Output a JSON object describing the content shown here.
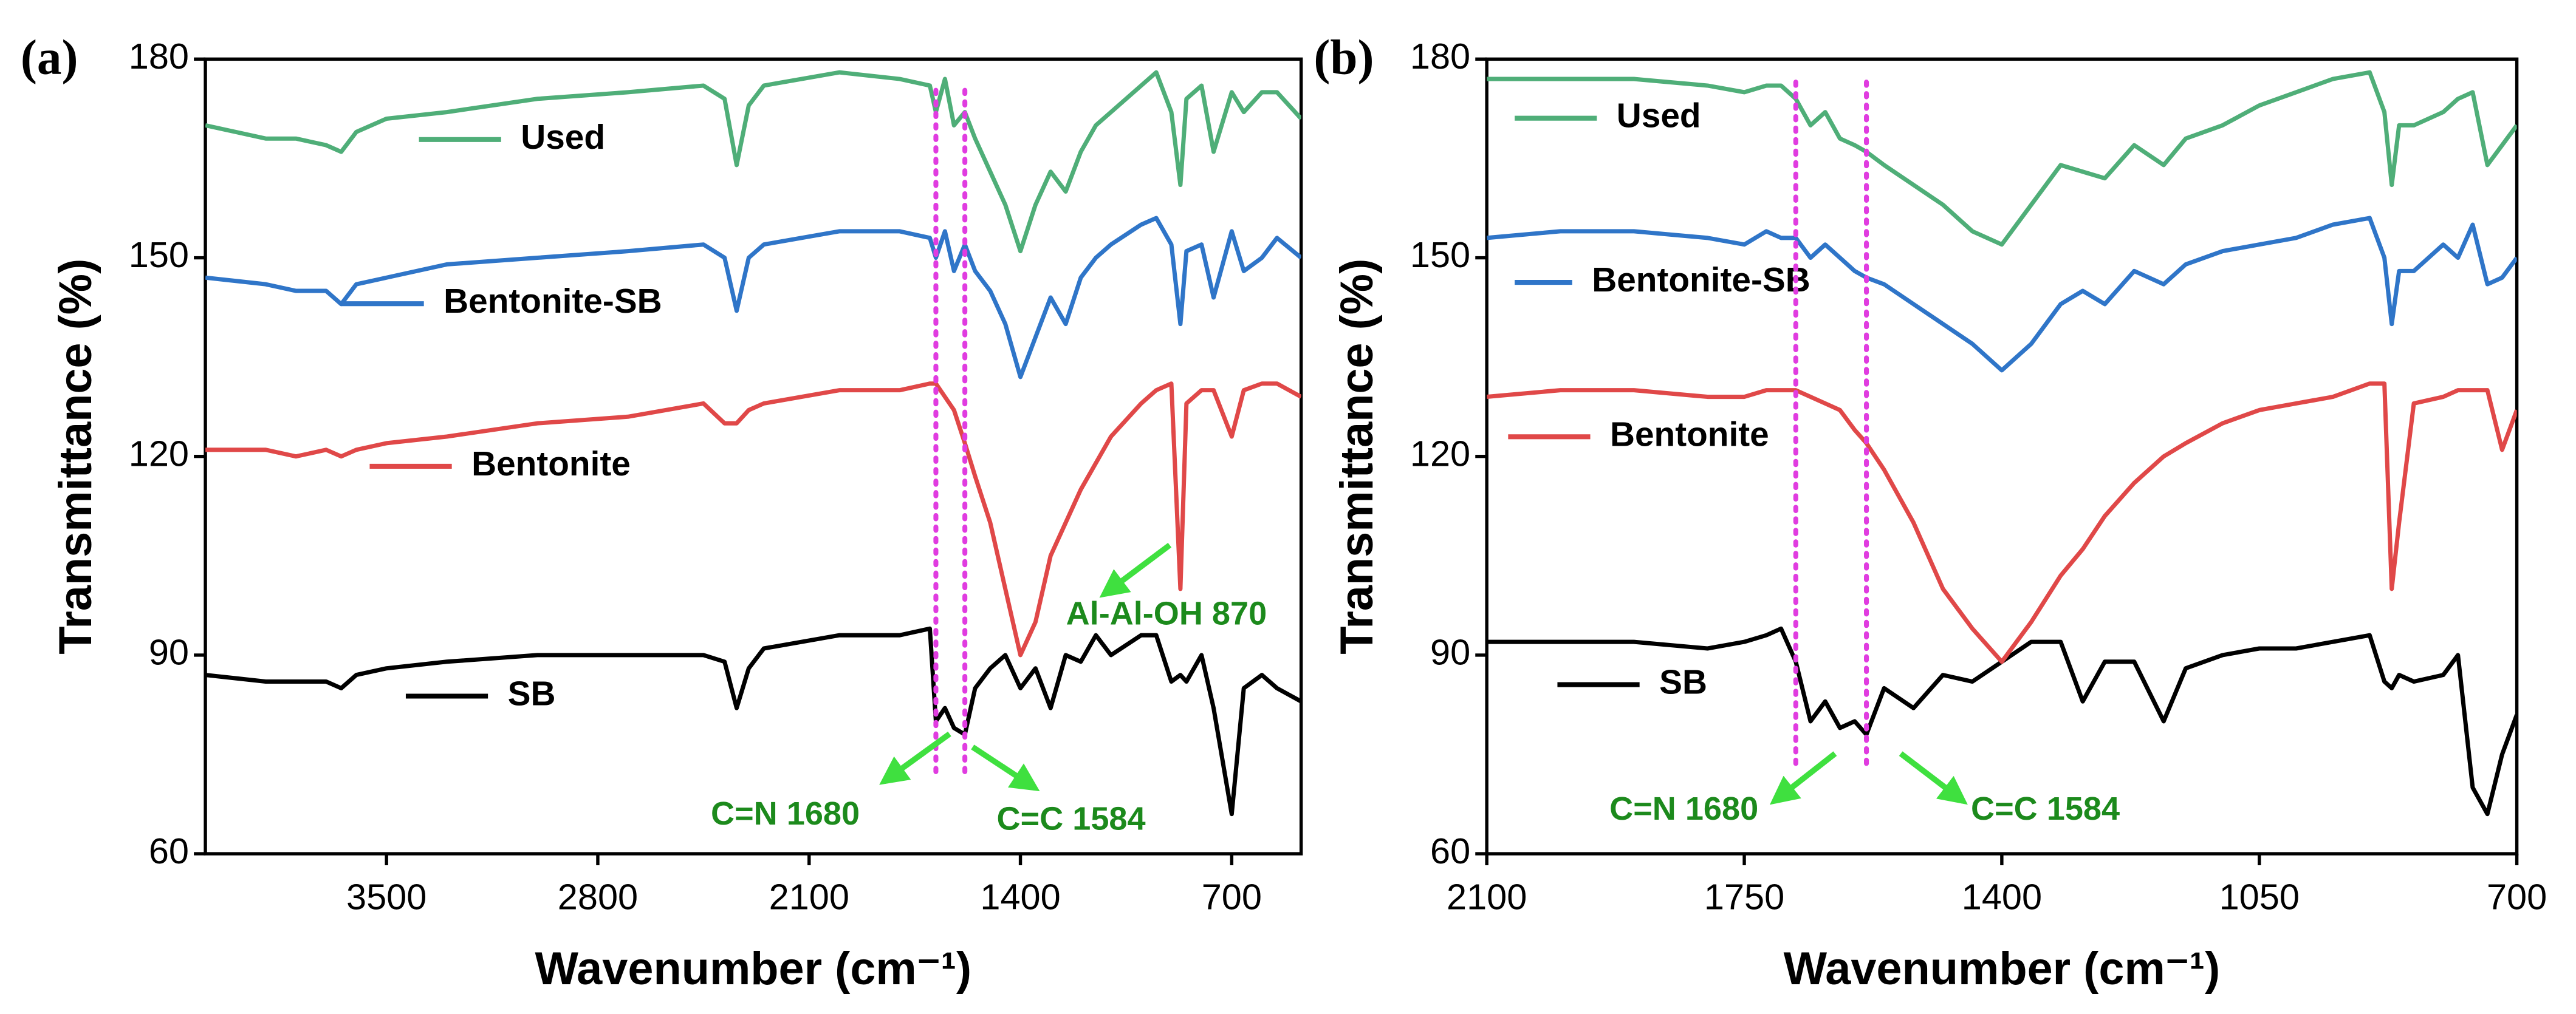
{
  "chart_data": [
    {
      "type": "line",
      "panel_label": "(a)",
      "x_label": "Wavenumber (cm⁻¹)",
      "y_label": "Transmittance (%)",
      "xlim": [
        4100,
        470
      ],
      "xticks": [
        3500,
        2800,
        2100,
        1400,
        700
      ],
      "x_reversed": true,
      "ylim": [
        60,
        180
      ],
      "yticks": [
        60,
        90,
        120,
        150,
        180
      ],
      "vlines": [
        1680,
        1584
      ],
      "vline_color": "#e03ce0",
      "annotations": [
        "C=N 1680",
        "C=C 1584",
        "Al-Al-OH 870"
      ],
      "x": [
        4100,
        3900,
        3800,
        3700,
        3650,
        3600,
        3500,
        3300,
        3000,
        2700,
        2450,
        2380,
        2340,
        2300,
        2250,
        2000,
        1800,
        1700,
        1680,
        1650,
        1620,
        1584,
        1550,
        1500,
        1450,
        1400,
        1350,
        1300,
        1250,
        1200,
        1150,
        1100,
        1000,
        950,
        900,
        870,
        850,
        800,
        760,
        700,
        660,
        600,
        550,
        470
      ],
      "series": [
        {
          "name": "SB",
          "color": "#000000",
          "values": [
            87,
            86,
            86,
            86,
            85,
            87,
            88,
            89,
            90,
            90,
            90,
            89,
            82,
            88,
            91,
            93,
            93,
            94,
            80,
            82,
            79,
            78,
            85,
            88,
            90,
            85,
            88,
            82,
            90,
            89,
            93,
            90,
            93,
            93,
            86,
            87,
            86,
            90,
            82,
            66,
            85,
            87,
            85,
            83
          ]
        },
        {
          "name": "Bentonite",
          "color": "#e04848",
          "values": [
            121,
            121,
            120,
            121,
            120,
            121,
            122,
            123,
            125,
            126,
            128,
            125,
            125,
            127,
            128,
            130,
            130,
            131,
            131,
            129,
            127,
            122,
            117,
            110,
            100,
            90,
            95,
            105,
            110,
            115,
            119,
            123,
            128,
            130,
            131,
            100,
            128,
            130,
            130,
            123,
            130,
            131,
            131,
            129
          ]
        },
        {
          "name": "Bentonite-SB",
          "color": "#2f75c8",
          "values": [
            147,
            146,
            145,
            145,
            143,
            146,
            147,
            149,
            150,
            151,
            152,
            150,
            142,
            150,
            152,
            154,
            154,
            153,
            150,
            154,
            148,
            152,
            148,
            145,
            140,
            132,
            138,
            144,
            140,
            147,
            150,
            152,
            155,
            156,
            152,
            140,
            151,
            152,
            144,
            154,
            148,
            150,
            153,
            150
          ]
        },
        {
          "name": "Used",
          "color": "#4fae78",
          "values": [
            170,
            168,
            168,
            167,
            166,
            169,
            171,
            172,
            174,
            175,
            176,
            174,
            164,
            173,
            176,
            178,
            177,
            176,
            172,
            177,
            170,
            172,
            168,
            163,
            158,
            151,
            158,
            163,
            160,
            166,
            170,
            172,
            176,
            178,
            172,
            161,
            174,
            176,
            166,
            175,
            172,
            175,
            175,
            171
          ]
        }
      ]
    },
    {
      "type": "line",
      "panel_label": "(b)",
      "x_label": "Wavenumber (cm⁻¹)",
      "y_label": "Transmittance (%)",
      "xlim": [
        2100,
        700
      ],
      "xticks": [
        2100,
        1750,
        1400,
        1050,
        700
      ],
      "x_reversed": true,
      "ylim": [
        60,
        180
      ],
      "yticks": [
        60,
        90,
        120,
        150,
        180
      ],
      "vlines": [
        1680,
        1584
      ],
      "vline_color": "#e03ce0",
      "annotations": [
        "C=N 1680",
        "C=C 1584"
      ],
      "x": [
        2100,
        2000,
        1900,
        1800,
        1750,
        1720,
        1700,
        1680,
        1660,
        1640,
        1620,
        1600,
        1584,
        1560,
        1520,
        1480,
        1440,
        1400,
        1360,
        1320,
        1290,
        1260,
        1220,
        1180,
        1150,
        1100,
        1050,
        1000,
        950,
        900,
        880,
        870,
        860,
        840,
        800,
        780,
        760,
        740,
        720,
        700
      ],
      "series": [
        {
          "name": "SB",
          "color": "#000000",
          "values": [
            92,
            92,
            92,
            91,
            92,
            93,
            94,
            89,
            80,
            83,
            79,
            80,
            78,
            85,
            82,
            87,
            86,
            89,
            92,
            92,
            83,
            89,
            89,
            80,
            88,
            90,
            91,
            91,
            92,
            93,
            86,
            85,
            87,
            86,
            87,
            90,
            70,
            66,
            75,
            81
          ]
        },
        {
          "name": "Bentonite",
          "color": "#e04848",
          "values": [
            129,
            130,
            130,
            129,
            129,
            130,
            130,
            130,
            129,
            128,
            127,
            124,
            122,
            118,
            110,
            100,
            94,
            89,
            95,
            102,
            106,
            111,
            116,
            120,
            122,
            125,
            127,
            128,
            129,
            131,
            131,
            100,
            110,
            128,
            129,
            130,
            130,
            130,
            121,
            127
          ]
        },
        {
          "name": "Bentonite-SB",
          "color": "#2f75c8",
          "values": [
            153,
            154,
            154,
            153,
            152,
            154,
            153,
            153,
            150,
            152,
            150,
            148,
            147,
            146,
            143,
            140,
            137,
            133,
            137,
            143,
            145,
            143,
            148,
            146,
            149,
            151,
            152,
            153,
            155,
            156,
            150,
            140,
            148,
            148,
            152,
            150,
            155,
            146,
            147,
            150
          ]
        },
        {
          "name": "Used",
          "color": "#4fae78",
          "values": [
            177,
            177,
            177,
            176,
            175,
            176,
            176,
            174,
            170,
            172,
            168,
            167,
            166,
            164,
            161,
            158,
            154,
            152,
            158,
            164,
            163,
            162,
            167,
            164,
            168,
            170,
            173,
            175,
            177,
            178,
            172,
            161,
            170,
            170,
            172,
            174,
            175,
            164,
            167,
            170
          ]
        }
      ]
    }
  ]
}
